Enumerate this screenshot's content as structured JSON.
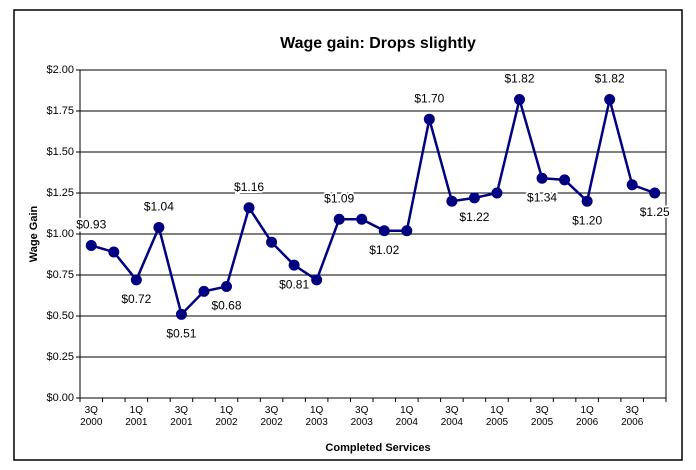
{
  "chart_data": {
    "type": "line",
    "title": "Wage gain: Drops slightly",
    "y_label": "Wage Gain",
    "x_label": "Completed Services",
    "categories": [
      "3Q 2000",
      null,
      "1Q 2001",
      null,
      "3Q 2001",
      null,
      "1Q 2002",
      null,
      "3Q 2002",
      null,
      "1Q 2003",
      null,
      "3Q 2003",
      null,
      "1Q 2004",
      null,
      "3Q 2004",
      null,
      "1Q 2005",
      null,
      "3Q 2005",
      null,
      "1Q 2006",
      null,
      "3Q 2006",
      null
    ],
    "values": [
      0.93,
      0.89,
      0.72,
      1.04,
      0.51,
      0.65,
      0.68,
      1.16,
      0.95,
      0.81,
      0.72,
      1.09,
      1.09,
      1.02,
      1.02,
      1.7,
      1.2,
      1.22,
      1.25,
      1.82,
      1.34,
      1.33,
      1.2,
      1.82,
      1.3,
      1.25
    ],
    "value_labels": [
      "$0.93",
      null,
      "$0.72",
      "$1.04",
      "$0.51",
      null,
      "$0.68",
      "$1.16",
      null,
      "$0.81",
      null,
      "$1.09",
      null,
      "$1.02",
      null,
      "$1.70",
      null,
      "$1.22",
      null,
      "$1.82",
      "$1.34",
      null,
      "$1.20",
      "$1.82",
      null,
      "$1.25"
    ],
    "color": "#000080",
    "ylim": [
      0,
      2
    ],
    "yticks": [
      {
        "value": 0,
        "label": "$0.00"
      },
      {
        "value": 0.25,
        "label": "$0.25"
      },
      {
        "value": 0.5,
        "label": "$0.50"
      },
      {
        "value": 0.75,
        "label": "$0.75"
      },
      {
        "value": 1,
        "label": "$1.00"
      },
      {
        "value": 1.25,
        "label": "$1.25"
      },
      {
        "value": 1.5,
        "label": "$1.50"
      },
      {
        "value": 1.75,
        "label": "$1.75"
      },
      {
        "value": 2,
        "label": "$2.00"
      }
    ],
    "grid": true
  }
}
